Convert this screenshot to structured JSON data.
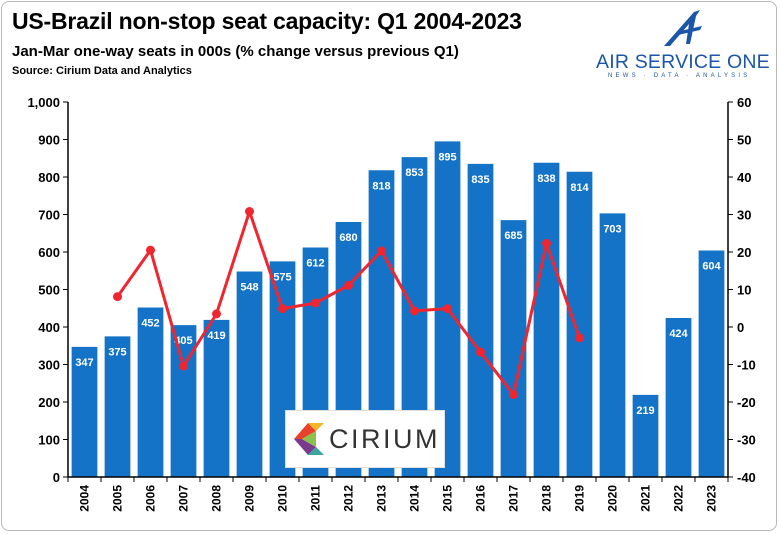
{
  "header": {
    "title": "US-Brazil non-stop seat capacity: Q1 2004-2023",
    "subtitle": "Jan-Mar one-way seats in 000s (% change versus previous Q1)",
    "source": "Source: Cirium Data and Analytics"
  },
  "logo": {
    "name": "AIR SERVICE ONE",
    "tagline": "NEWS · DATA · ANALYSIS",
    "color": "#1b56a8"
  },
  "watermark": {
    "text": "CIRIUM"
  },
  "chart_data": {
    "type": "bar",
    "title": "US-Brazil non-stop seat capacity: Q1 2004-2023",
    "categories": [
      "2004",
      "2005",
      "2006",
      "2007",
      "2008",
      "2009",
      "2010",
      "2011",
      "2012",
      "2013",
      "2014",
      "2015",
      "2016",
      "2017",
      "2018",
      "2019",
      "2020",
      "2021",
      "2022",
      "2023"
    ],
    "series": [
      {
        "type": "bar",
        "axis": "left",
        "color": "#1473c7",
        "values": [
          347,
          375,
          452,
          405,
          419,
          548,
          575,
          612,
          680,
          818,
          853,
          895,
          835,
          685,
          838,
          814,
          703,
          219,
          424,
          604
        ],
        "data_labels": true
      },
      {
        "type": "line",
        "axis": "right",
        "color": "#ef2630",
        "values": [
          null,
          8.1,
          20.5,
          -10.4,
          3.5,
          30.8,
          4.9,
          6.4,
          11.1,
          20.3,
          4.3,
          4.9,
          -6.7,
          -18.0,
          22.3,
          -2.9,
          null,
          null,
          null,
          null
        ]
      }
    ],
    "left_axis": {
      "min": 0,
      "max": 1000,
      "step": 100,
      "tick_labels": [
        "0",
        "100",
        "200",
        "300",
        "400",
        "500",
        "600",
        "700",
        "800",
        "900",
        "1,000"
      ]
    },
    "right_axis": {
      "min": -40,
      "max": 60,
      "step": 10,
      "tick_labels": [
        "-40",
        "-30",
        "-20",
        "-10",
        "0",
        "10",
        "20",
        "30",
        "40",
        "50",
        "60"
      ]
    },
    "grid": false
  }
}
